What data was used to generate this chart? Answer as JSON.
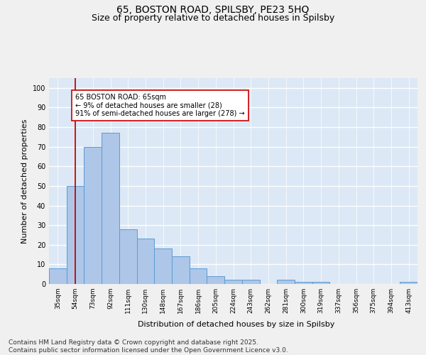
{
  "title1": "65, BOSTON ROAD, SPILSBY, PE23 5HQ",
  "title2": "Size of property relative to detached houses in Spilsby",
  "xlabel": "Distribution of detached houses by size in Spilsby",
  "ylabel": "Number of detached properties",
  "categories": [
    "35sqm",
    "54sqm",
    "73sqm",
    "92sqm",
    "111sqm",
    "130sqm",
    "148sqm",
    "167sqm",
    "186sqm",
    "205sqm",
    "224sqm",
    "243sqm",
    "262sqm",
    "281sqm",
    "300sqm",
    "319sqm",
    "337sqm",
    "356sqm",
    "375sqm",
    "394sqm",
    "413sqm"
  ],
  "values": [
    8,
    50,
    70,
    77,
    28,
    23,
    18,
    14,
    8,
    4,
    2,
    2,
    0,
    2,
    1,
    1,
    0,
    0,
    0,
    0,
    1
  ],
  "bar_color": "#aec6e8",
  "bar_edge_color": "#5b9bd5",
  "vline_x": 1.0,
  "vline_color": "#cc0000",
  "annotation_text": "65 BOSTON ROAD: 65sqm\n← 9% of detached houses are smaller (28)\n91% of semi-detached houses are larger (278) →",
  "annotation_box_color": "#ffffff",
  "annotation_box_edge": "#cc0000",
  "ylim": [
    0,
    105
  ],
  "yticks": [
    0,
    10,
    20,
    30,
    40,
    50,
    60,
    70,
    80,
    90,
    100
  ],
  "background_color": "#dce8f5",
  "grid_color": "#ffffff",
  "footer": "Contains HM Land Registry data © Crown copyright and database right 2025.\nContains public sector information licensed under the Open Government Licence v3.0.",
  "title_fontsize": 10,
  "subtitle_fontsize": 9,
  "label_fontsize": 8,
  "tick_fontsize": 7,
  "footer_fontsize": 6.5
}
